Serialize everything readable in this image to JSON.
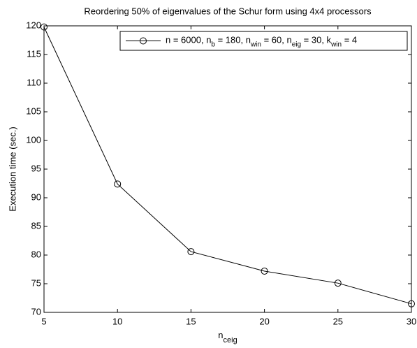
{
  "chart_data": {
    "type": "line",
    "title": "Reordering 50% of eigenvalues of the Schur form using 4x4 processors",
    "xlabel": [
      "n",
      "ceig"
    ],
    "ylabel": "Execution time (sec.)",
    "x": [
      5,
      10,
      15,
      20,
      25,
      30
    ],
    "series": [
      {
        "name": [
          "n = 6000, n",
          "b",
          " = 180, n",
          "win",
          " = 60, n",
          "eig",
          " = 30, k",
          "win",
          " = 4"
        ],
        "color": "#000000",
        "values": [
          119.8,
          92.4,
          80.6,
          77.2,
          75.1,
          71.5
        ]
      }
    ],
    "xlim": [
      5,
      30
    ],
    "xticks": [
      5,
      10,
      15,
      20,
      25,
      30
    ],
    "ylim": [
      70,
      120
    ],
    "yticks": [
      70,
      75,
      80,
      85,
      90,
      95,
      100,
      105,
      110,
      115,
      120
    ],
    "grid": false,
    "legend": "northeast"
  }
}
